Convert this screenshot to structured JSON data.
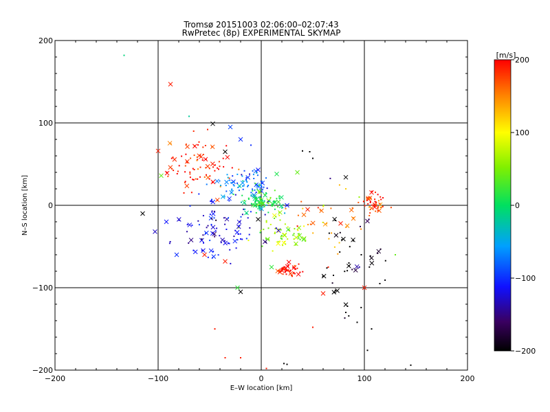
{
  "chart_data": {
    "type": "scatter",
    "title_lines": [
      "Tromsø 20151003 02:06:00–02:07:43",
      "RwPretec (8p) EXPERIMENTAL SKYMAP"
    ],
    "xlabel": "E–W location [km]",
    "ylabel": "N–S location [km]",
    "xlim": [
      -200,
      200
    ],
    "ylim": [
      -200,
      200
    ],
    "x_ticks": [
      -200,
      -100,
      0,
      100,
      200
    ],
    "y_ticks": [
      -200,
      -100,
      0,
      100,
      200
    ],
    "x_tick_labels": [
      "−200",
      "−100",
      "0",
      "100",
      "200"
    ],
    "y_tick_labels": [
      "−200",
      "−100",
      "0",
      "100",
      "200"
    ],
    "grid": true,
    "colorbar": {
      "label": "[m/s]",
      "range": [
        -200,
        200
      ],
      "ticks": [
        200,
        100,
        0,
        -100,
        -200
      ],
      "tick_labels": [
        "200",
        "100",
        "0",
        "−100",
        "−200"
      ]
    },
    "clusters": [
      {
        "x": -60,
        "y": 45,
        "sx": 16,
        "sy": 14,
        "v": 190,
        "n": 70
      },
      {
        "x": -15,
        "y": 25,
        "sx": 14,
        "sy": 10,
        "v": -80,
        "n": 60
      },
      {
        "x": 0,
        "y": 5,
        "sx": 10,
        "sy": 8,
        "v": 10,
        "n": 70
      },
      {
        "x": 20,
        "y": -30,
        "sx": 12,
        "sy": 10,
        "v": 60,
        "n": 55
      },
      {
        "x": -40,
        "y": -30,
        "sx": 20,
        "sy": 18,
        "v": -120,
        "n": 70
      },
      {
        "x": 110,
        "y": 2,
        "sx": 6,
        "sy": 7,
        "v": 190,
        "n": 40
      },
      {
        "x": 27,
        "y": -78,
        "sx": 5,
        "sy": 4,
        "v": 190,
        "n": 40
      },
      {
        "x": 90,
        "y": -80,
        "sx": 15,
        "sy": 40,
        "v": -200,
        "n": 30
      },
      {
        "x": 70,
        "y": -20,
        "sx": 25,
        "sy": 15,
        "v": 150,
        "n": 25
      }
    ],
    "cross_markers": [
      {
        "x": -88,
        "y": 147,
        "v": 190
      },
      {
        "x": -30,
        "y": 95,
        "v": -90
      },
      {
        "x": -47,
        "y": 99,
        "v": -200
      },
      {
        "x": -20,
        "y": 80,
        "v": -100
      },
      {
        "x": -35,
        "y": 65,
        "v": -200
      },
      {
        "x": -100,
        "y": 66,
        "v": 190
      },
      {
        "x": -97,
        "y": 36,
        "v": 40
      },
      {
        "x": 82,
        "y": 34,
        "v": -200
      },
      {
        "x": -115,
        "y": -10,
        "v": -200
      },
      {
        "x": -92,
        "y": -20,
        "v": -110
      },
      {
        "x": -82,
        "y": -60,
        "v": -100
      },
      {
        "x": -103,
        "y": -32,
        "v": -130
      },
      {
        "x": -55,
        "y": -60,
        "v": 190
      },
      {
        "x": -35,
        "y": -68,
        "v": 190
      },
      {
        "x": -23,
        "y": -100,
        "v": 20
      },
      {
        "x": -20,
        "y": -105,
        "v": -200
      },
      {
        "x": 60,
        "y": -107,
        "v": 190
      },
      {
        "x": 100,
        "y": -100,
        "v": 190
      },
      {
        "x": 77,
        "y": -22,
        "v": 190
      },
      {
        "x": 35,
        "y": 40,
        "v": 40
      },
      {
        "x": 15,
        "y": 38,
        "v": 10
      },
      {
        "x": 25,
        "y": 0,
        "v": -110
      },
      {
        "x": 10,
        "y": -75,
        "v": 20
      },
      {
        "x": 45,
        "y": -5,
        "v": 190
      },
      {
        "x": -3,
        "y": 43,
        "v": -110
      },
      {
        "x": -3,
        "y": -17,
        "v": -200
      }
    ],
    "sparse_points": [
      {
        "x": -133,
        "y": 182,
        "v": -10
      },
      {
        "x": -70,
        "y": 108,
        "v": -20
      },
      {
        "x": -52,
        "y": 92,
        "v": 190
      },
      {
        "x": -10,
        "y": 73,
        "v": -100
      },
      {
        "x": 40,
        "y": 66,
        "v": -200
      },
      {
        "x": 47,
        "y": 65,
        "v": -200
      },
      {
        "x": 50,
        "y": 57,
        "v": -200
      },
      {
        "x": 82,
        "y": 20,
        "v": 120
      },
      {
        "x": 95,
        "y": 10,
        "v": 60
      },
      {
        "x": -75,
        "y": 15,
        "v": 190
      },
      {
        "x": 130,
        "y": -60,
        "v": 40
      },
      {
        "x": 115,
        "y": -95,
        "v": -200
      },
      {
        "x": 107,
        "y": -150,
        "v": -200
      },
      {
        "x": 93,
        "y": -142,
        "v": -200
      },
      {
        "x": 82,
        "y": -130,
        "v": -200
      },
      {
        "x": 103,
        "y": -176,
        "v": -200
      },
      {
        "x": 145,
        "y": -194,
        "v": -200
      },
      {
        "x": 25,
        "y": -193,
        "v": -200
      },
      {
        "x": 22,
        "y": -192,
        "v": -200
      },
      {
        "x": 50,
        "y": -148,
        "v": 190
      },
      {
        "x": -20,
        "y": -185,
        "v": 190
      },
      {
        "x": -35,
        "y": -185,
        "v": 190
      },
      {
        "x": 5,
        "y": -198,
        "v": 190
      },
      {
        "x": -45,
        "y": -150,
        "v": 190
      },
      {
        "x": 65,
        "y": -75,
        "v": 190
      },
      {
        "x": 70,
        "y": -85,
        "v": -200
      },
      {
        "x": 85,
        "y": -70,
        "v": -200
      },
      {
        "x": 97,
        "y": -60,
        "v": -200
      }
    ]
  }
}
